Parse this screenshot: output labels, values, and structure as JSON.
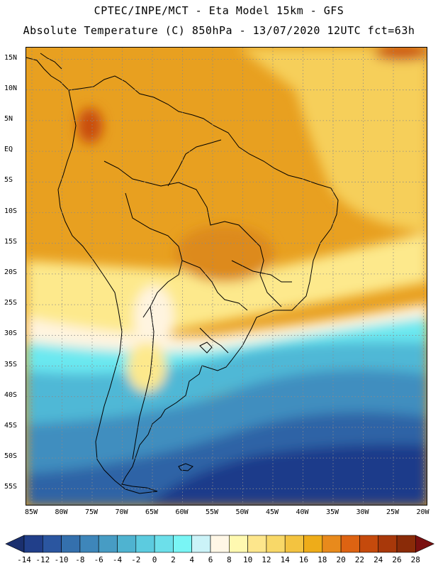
{
  "header": {
    "line1": "CPTEC/INPE/MCT -  Eta Model 15km - GFS",
    "line2": "Absolute Temperature (C) 850hPa - 13/07/2020 12UTC fct=63h"
  },
  "lat_labels": [
    "15N",
    "10N",
    "5N",
    "EQ",
    "5S",
    "10S",
    "15S",
    "20S",
    "25S",
    "30S",
    "35S",
    "40S",
    "45S",
    "50S",
    "55S"
  ],
  "lon_labels": [
    "85W",
    "80W",
    "75W",
    "70W",
    "65W",
    "60W",
    "55W",
    "50W",
    "45W",
    "40W",
    "35W",
    "30W",
    "25W",
    "20W"
  ],
  "colorbar": {
    "labels": [
      "-14",
      "-12",
      "-10",
      "-8",
      "-6",
      "-4",
      "-2",
      "0",
      "2",
      "4",
      "6",
      "8",
      "10",
      "12",
      "14",
      "16",
      "18",
      "20",
      "22",
      "24",
      "26",
      "28"
    ],
    "colors": {
      "lt_min": "#1a2f6e",
      "bins": [
        "#213f8a",
        "#2b56a0",
        "#3470ad",
        "#3e86ba",
        "#479cc4",
        "#4fb3d0",
        "#5ccbdf",
        "#6cdfea",
        "#79f5f5",
        "#cbf3f8",
        "#fff7e6",
        "#fff9b0",
        "#fde68c",
        "#f8d868",
        "#f3c340",
        "#eeac19",
        "#e88a1c",
        "#dd6312",
        "#c54a0c",
        "#a8380a",
        "#8a2b08"
      ],
      "gt_max": "#7a1010"
    }
  },
  "map_palette": {
    "ocean_south_deep": "#1c3a8a",
    "ocean_south": "#2f63a6",
    "ocean_mid": "#3f8ebf",
    "ocean_light": "#4fb8d6",
    "cyan": "#6be8f0",
    "pale": "#fff4e0",
    "yellow_light": "#fde98c",
    "yellow": "#f6cf5a",
    "orange_light": "#efb534",
    "orange": "#e8a020",
    "orange_dark": "#dd8a1a",
    "red": "#c94d10",
    "coast": "#000000"
  }
}
